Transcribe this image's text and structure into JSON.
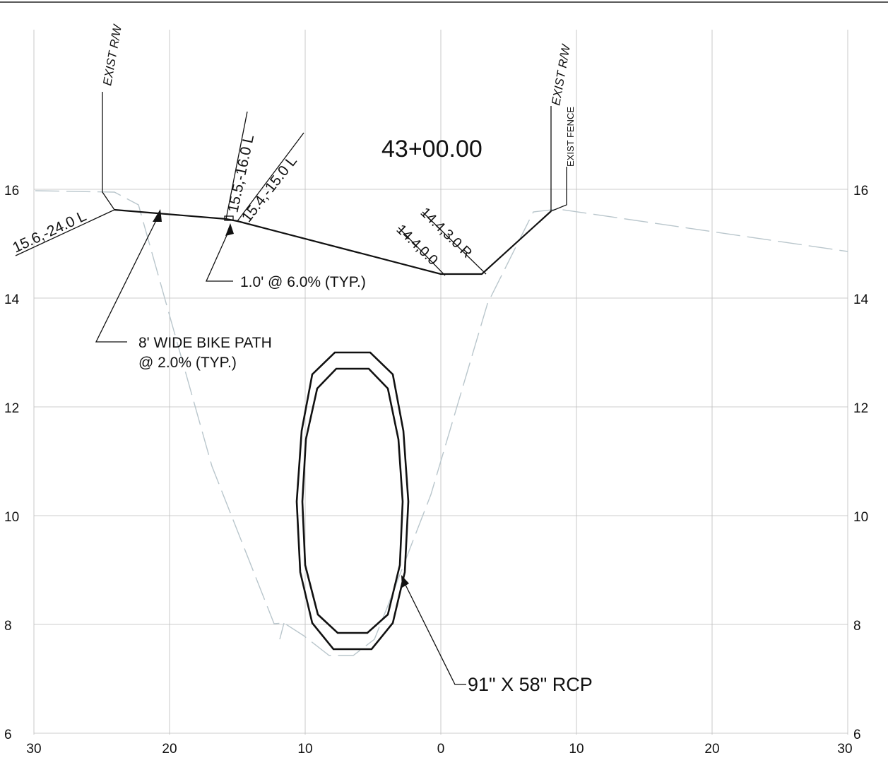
{
  "station": "43+00.00",
  "axes": {
    "x_ticks": [
      "30",
      "20",
      "10",
      "0",
      "10",
      "20",
      "30"
    ],
    "y_ticks": [
      "16",
      "14",
      "12",
      "10",
      "8",
      "6"
    ]
  },
  "labels": {
    "exist_rw_left": "EXIST R/W",
    "exist_rw_right": "EXIST R/W",
    "exist_fence": "EXIST FENCE",
    "pt_left": "15.6,-24.0 L",
    "pt_16_0": "15.5,-16.0 L",
    "pt_15_0": "15.4,-15.0 L",
    "pt_cl": "14.4,0.0",
    "pt_3_0": "14.4,3.0 R",
    "slope_note": "1.0' @ 6.0% (TYP.)",
    "bike_path_line1": "8' WIDE BIKE PATH",
    "bike_path_line2": "@ 2.0% (TYP.)",
    "pipe": "91\" X 58\" RCP"
  },
  "colors": {
    "grid": "#bdbdbd",
    "existing_ground": "#b9c6cc",
    "linework": "#111111"
  }
}
